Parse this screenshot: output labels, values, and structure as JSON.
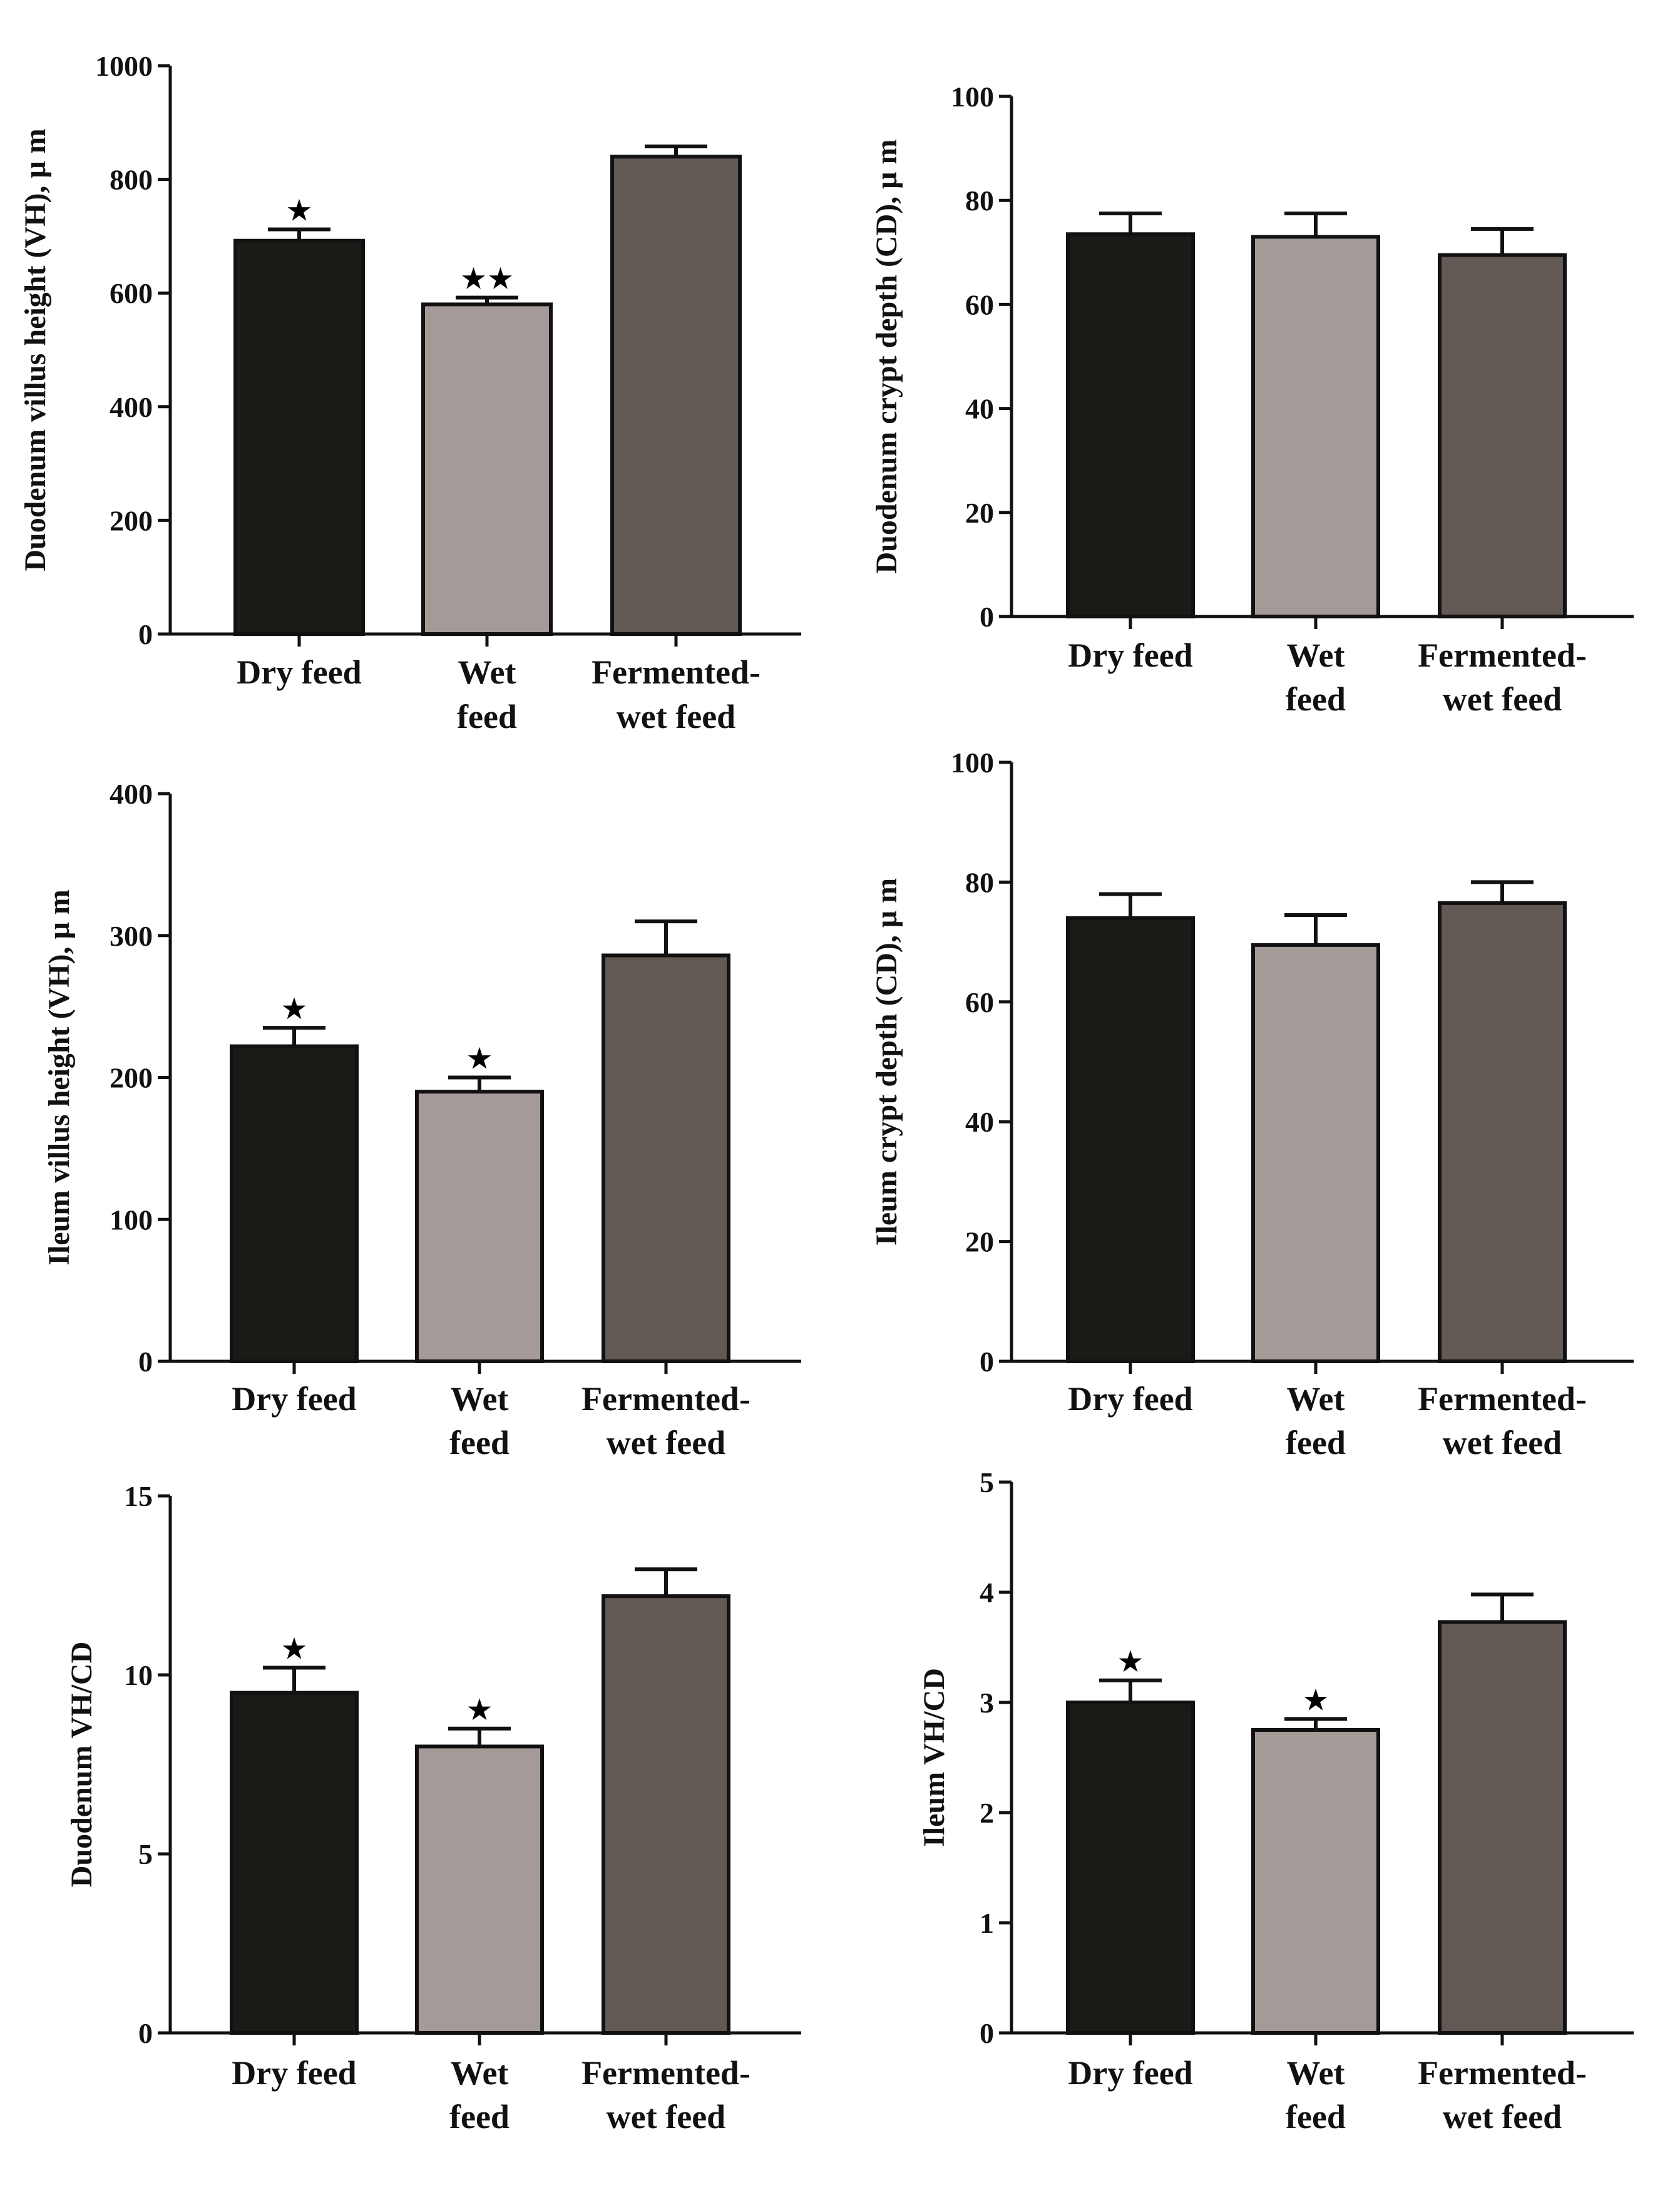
{
  "colors": {
    "dry": "#1c1a17",
    "wet": "#a49b98",
    "fermented": "#625954",
    "axis": "#111111"
  },
  "chart_data": [
    {
      "id": "duodenum-vh",
      "type": "bar",
      "ylabel": "Duodenum villus height (VH), μ m",
      "ylim": [
        0,
        1000
      ],
      "yticks": [
        0,
        200,
        400,
        600,
        800,
        1000
      ],
      "categories": [
        [
          "Dry feed"
        ],
        [
          "Wet",
          "feed"
        ],
        [
          "Fermented-",
          "wet feed"
        ]
      ],
      "values": [
        692,
        580,
        840
      ],
      "errors": [
        20,
        12,
        18
      ],
      "marks": [
        "★",
        "★★",
        ""
      ]
    },
    {
      "id": "duodenum-cd",
      "type": "bar",
      "ylabel": "Duodenum crypt depth (CD), μ m",
      "ylim": [
        0,
        100
      ],
      "yticks": [
        0,
        20,
        40,
        60,
        80,
        100
      ],
      "categories": [
        [
          "Dry feed"
        ],
        [
          "Wet",
          "feed"
        ],
        [
          "Fermented-",
          "wet feed"
        ]
      ],
      "values": [
        73.5,
        73,
        69.5
      ],
      "errors": [
        4,
        4.5,
        5
      ],
      "marks": [
        "",
        "",
        ""
      ]
    },
    {
      "id": "ileum-vh",
      "type": "bar",
      "ylabel": "Ileum villus height (VH), μ m",
      "ylim": [
        0,
        400
      ],
      "yticks": [
        0,
        100,
        200,
        300,
        400
      ],
      "categories": [
        [
          "Dry feed"
        ],
        [
          "Wet",
          "feed"
        ],
        [
          "Fermented-",
          "wet feed"
        ]
      ],
      "values": [
        222,
        190,
        286
      ],
      "errors": [
        13,
        10,
        24
      ],
      "marks": [
        "★",
        "★",
        ""
      ]
    },
    {
      "id": "ileum-cd",
      "type": "bar",
      "ylabel": "Ileum crypt depth (CD), μ m",
      "ylim": [
        0,
        100
      ],
      "yticks": [
        0,
        20,
        40,
        60,
        80,
        100
      ],
      "categories": [
        [
          "Dry feed"
        ],
        [
          "Wet",
          "feed"
        ],
        [
          "Fermented-",
          "wet feed"
        ]
      ],
      "values": [
        74,
        69.5,
        76.5
      ],
      "errors": [
        4,
        5,
        3.5
      ],
      "marks": [
        "",
        "",
        ""
      ]
    },
    {
      "id": "duodenum-ratio",
      "type": "bar",
      "ylabel": "Duodenum VH/CD",
      "ylim": [
        0,
        15
      ],
      "yticks": [
        0,
        5,
        10,
        15
      ],
      "categories": [
        [
          "Dry feed"
        ],
        [
          "Wet",
          "feed"
        ],
        [
          "Fermented-",
          "wet feed"
        ]
      ],
      "values": [
        9.5,
        8.0,
        12.2
      ],
      "errors": [
        0.7,
        0.5,
        0.75
      ],
      "marks": [
        "★",
        "★",
        ""
      ]
    },
    {
      "id": "ileum-ratio",
      "type": "bar",
      "ylabel": "Ileum VH/CD",
      "ylim": [
        0,
        5
      ],
      "yticks": [
        0,
        1,
        2,
        3,
        4,
        5
      ],
      "categories": [
        [
          "Dry feed"
        ],
        [
          "Wet",
          "feed"
        ],
        [
          "Fermented-",
          "wet feed"
        ]
      ],
      "values": [
        3.0,
        2.75,
        3.73
      ],
      "errors": [
        0.2,
        0.1,
        0.25
      ],
      "marks": [
        "★",
        "★",
        ""
      ]
    }
  ]
}
